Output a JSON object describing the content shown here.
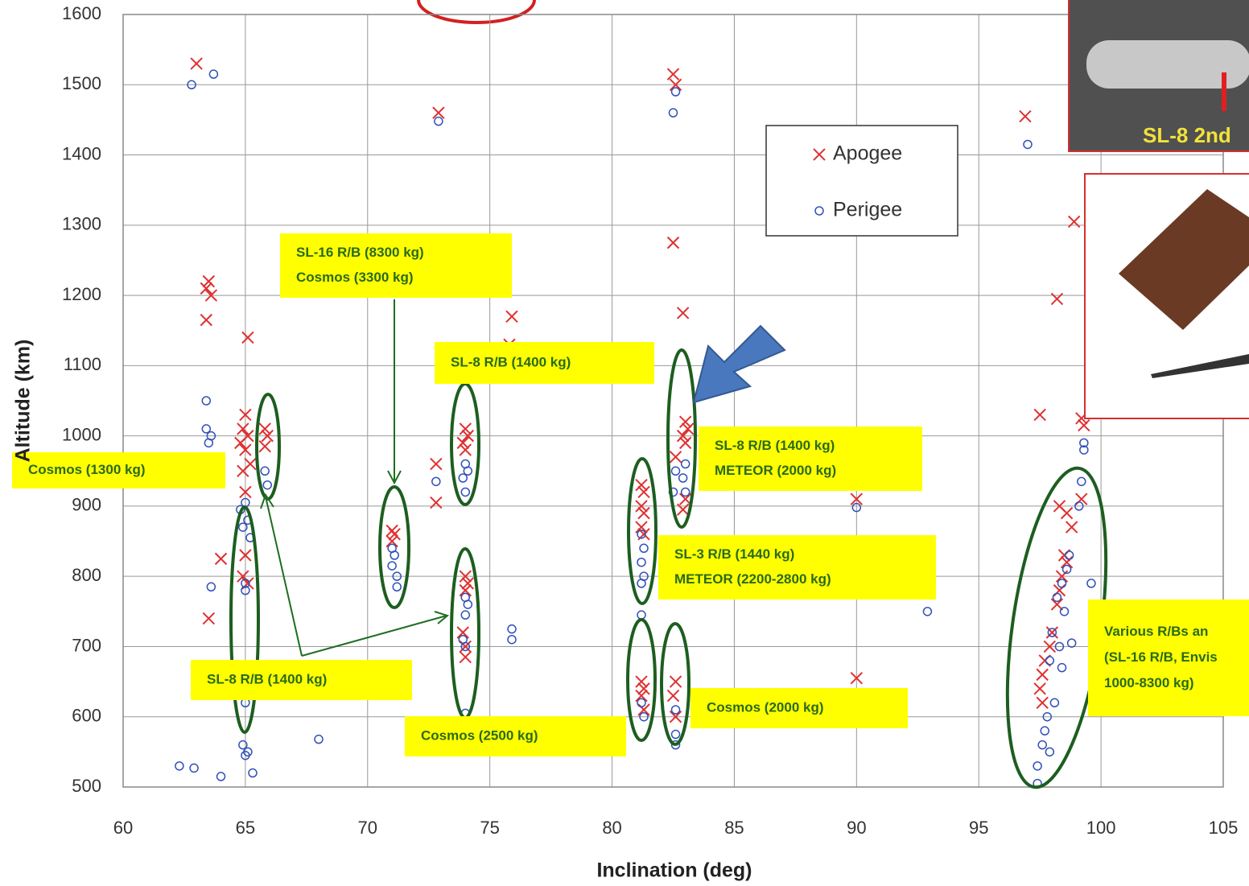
{
  "chart_data": {
    "type": "scatter",
    "x_label": "Inclination (deg)",
    "y_label": "Altitude (km)",
    "xlim": [
      60,
      105
    ],
    "ylim": [
      500,
      1600
    ],
    "xticks": [
      60,
      65,
      70,
      75,
      80,
      85,
      90,
      95,
      100,
      105
    ],
    "yticks": [
      500,
      600,
      700,
      800,
      900,
      1000,
      1100,
      1200,
      1300,
      1400,
      1500,
      1600
    ],
    "grid": true,
    "series": [
      {
        "name": "Apogee",
        "color": "#e03030",
        "marker": "x",
        "x": [
          63.0,
          63.5,
          63.4,
          63.6,
          63.4,
          64.0,
          63.5,
          65.1,
          65.0,
          64.9,
          65.1,
          64.8,
          65.0,
          65.2,
          64.9,
          65.0,
          65.0,
          64.9,
          65.1,
          65.8,
          65.9,
          65.8,
          71.0,
          71.1,
          71.0,
          72.9,
          72.8,
          72.8,
          74.0,
          74.1,
          73.9,
          74.0,
          74.0,
          74.1,
          74.0,
          73.9,
          74.0,
          74.0,
          75.9,
          75.8,
          82.5,
          82.6,
          82.5,
          82.9,
          83.0,
          83.1,
          82.9,
          83.0,
          82.6,
          83.0,
          82.9,
          81.2,
          81.3,
          81.2,
          81.3,
          81.2,
          81.3,
          81.2,
          81.3,
          81.2,
          81.3,
          82.6,
          82.5,
          82.6,
          90.0,
          90.0,
          96.9,
          97.5,
          98.9,
          98.2,
          99.2,
          99.3,
          99.2,
          98.3,
          98.6,
          98.8,
          98.5,
          98.6,
          98.4,
          98.3,
          98.2,
          98.0,
          97.9,
          97.7,
          97.6,
          97.5,
          97.6
        ],
        "values": [
          1530,
          1220,
          1210,
          1200,
          1165,
          825,
          740,
          1140,
          1030,
          1010,
          1000,
          990,
          980,
          960,
          950,
          920,
          830,
          800,
          790,
          1010,
          1000,
          985,
          865,
          860,
          850,
          1460,
          960,
          905,
          1010,
          1000,
          990,
          980,
          800,
          790,
          780,
          720,
          700,
          685,
          1170,
          1130,
          1515,
          1500,
          1275,
          1175,
          1020,
          1010,
          1000,
          990,
          970,
          910,
          895,
          930,
          920,
          900,
          890,
          870,
          860,
          650,
          640,
          630,
          610,
          650,
          630,
          600,
          910,
          655,
          1455,
          1030,
          1305,
          1195,
          1025,
          1015,
          910,
          900,
          890,
          870,
          830,
          820,
          800,
          780,
          760,
          720,
          700,
          680,
          660,
          640,
          620
        ]
      },
      {
        "name": "Perigee",
        "color": "#3050b8",
        "marker": "o",
        "x": [
          62.8,
          63.7,
          63.4,
          63.4,
          63.6,
          63.5,
          63.6,
          62.3,
          62.9,
          64.0,
          65.0,
          64.8,
          65.1,
          64.9,
          65.0,
          65.0,
          65.2,
          65.9,
          65.8,
          65.0,
          64.9,
          65.0,
          65.1,
          65.3,
          68.0,
          71.0,
          71.1,
          71.0,
          71.2,
          71.2,
          72.9,
          72.8,
          74.0,
          74.1,
          73.9,
          74.0,
          74.0,
          74.1,
          74.0,
          73.9,
          74.0,
          74.0,
          75.9,
          75.9,
          82.6,
          82.5,
          83.0,
          82.9,
          83.0,
          82.6,
          82.5,
          81.2,
          81.3,
          81.2,
          81.3,
          81.2,
          81.2,
          81.2,
          81.3,
          82.6,
          82.6,
          82.6,
          90.0,
          92.9,
          97.0,
          99.3,
          99.3,
          99.2,
          99.1,
          98.7,
          98.6,
          98.4,
          98.2,
          98.5,
          98.0,
          98.3,
          97.9,
          98.4,
          98.8,
          99.6,
          98.1,
          97.8,
          97.7,
          97.6,
          97.9,
          97.4,
          97.4
        ],
        "values": [
          1500,
          1515,
          1050,
          1010,
          1000,
          990,
          785,
          530,
          527,
          515,
          905,
          895,
          880,
          870,
          790,
          780,
          855,
          930,
          950,
          620,
          560,
          545,
          550,
          520,
          568,
          840,
          830,
          815,
          800,
          785,
          1448,
          935,
          960,
          950,
          940,
          920,
          770,
          760,
          745,
          710,
          700,
          605,
          725,
          710,
          1490,
          1460,
          960,
          940,
          920,
          950,
          920,
          860,
          840,
          820,
          800,
          790,
          745,
          620,
          600,
          610,
          575,
          560,
          898,
          750,
          1415,
          990,
          980,
          935,
          900,
          830,
          810,
          790,
          770,
          750,
          720,
          700,
          680,
          670,
          705,
          790,
          620,
          600,
          580,
          560,
          550,
          530,
          505
        ]
      }
    ],
    "annotations": [
      {
        "lines": [
          "SL-16 R/B (8300 kg)",
          "Cosmos (3300 kg)"
        ]
      },
      {
        "lines": [
          "SL-8 R/B (1400 kg)"
        ]
      },
      {
        "lines": [
          "SL-8 R/B (1400 kg)",
          "METEOR (2000 kg)"
        ]
      },
      {
        "lines": [
          "Cosmos (1300 kg)"
        ]
      },
      {
        "lines": [
          "SL-3 R/B (1440 kg)",
          "METEOR (2200-2800 kg)"
        ]
      },
      {
        "lines": [
          "SL-8 R/B (1400 kg)"
        ]
      },
      {
        "lines": [
          "Cosmos (2500 kg)"
        ]
      },
      {
        "lines": [
          "Cosmos (2000 kg)"
        ]
      },
      {
        "lines": [
          "Various  R/Bs an",
          "(SL-16 R/B, Envis",
          "1000-8300 kg)"
        ]
      },
      {
        "lines": [
          "SL-8 2nd"
        ]
      }
    ]
  }
}
